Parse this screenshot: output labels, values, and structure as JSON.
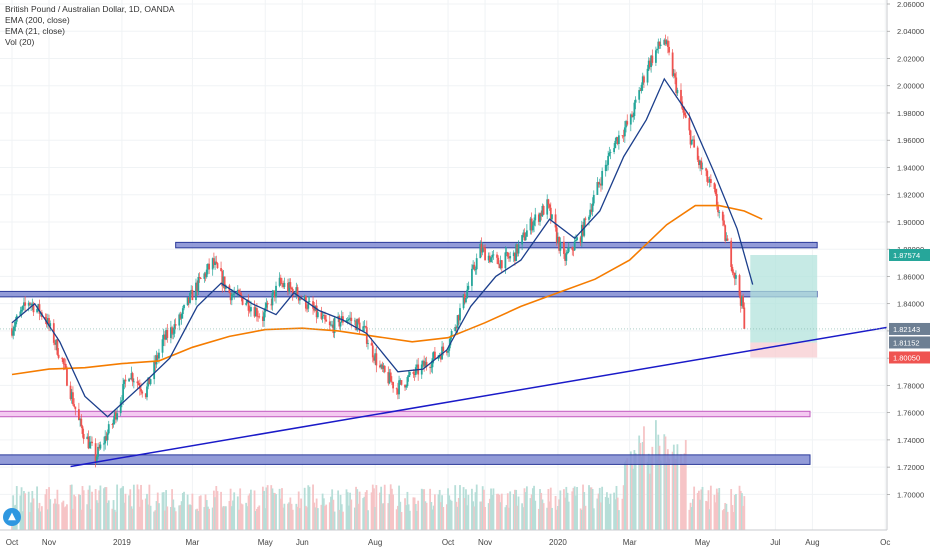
{
  "legend": {
    "title": "British Pound / Australian Dollar, 1D, OANDA",
    "ema200": "EMA (200, close)",
    "ema21": "EMA (21, close)",
    "vol": "Vol (20)"
  },
  "logo_icon": "tradingview-logo-icon",
  "colors": {
    "up": "#26a69a",
    "down": "#ef5350",
    "ema21": "#1c3f8c",
    "ema200": "#f57c00",
    "zone_fill": "#7f8ad1",
    "zone_edge": "#2b3a9a",
    "pink_zone": "#f3c4f0",
    "trendline": "#1a1ac8",
    "target_box": "#b3e3dc",
    "stop_box": "#f8cfd3"
  },
  "chart_data": {
    "type": "candlestick",
    "title": "British Pound / Australian Dollar, 1D, OANDA",
    "y_range": [
      1.69,
      2.06
    ],
    "y_ticks": [
      "2.06000",
      "2.04000",
      "2.02000",
      "2.00000",
      "1.98000",
      "1.96000",
      "1.94000",
      "1.92000",
      "1.90000",
      "1.88000",
      "1.86000",
      "1.84000",
      "1.82000",
      "1.80000",
      "1.78000",
      "1.76000",
      "1.74000",
      "1.72000",
      "1.70000"
    ],
    "x_ticks": [
      "Oct",
      "Nov",
      "2019",
      "Mar",
      "May",
      "Jun",
      "Aug",
      "Oct",
      "Nov",
      "2020",
      "Mar",
      "May",
      "Jul",
      "Aug",
      "Oc"
    ],
    "x_range": [
      "2018-10-01",
      "2020-10-15"
    ],
    "price_labels": [
      {
        "text": "1.87574",
        "value": 1.87574,
        "color": "#26a69a"
      },
      {
        "text": "1.82143",
        "value": 1.82143,
        "color": "#6d7f93"
      },
      {
        "text": "1.81152",
        "value": 1.81152,
        "color": "#6d7f93"
      },
      {
        "text": "1.80050",
        "value": 1.8005,
        "color": "#ef5350"
      }
    ],
    "close_path": [
      [
        "2018-10-01",
        1.822
      ],
      [
        "2018-10-15",
        1.842
      ],
      [
        "2018-10-29",
        1.83
      ],
      [
        "2018-11-12",
        1.798
      ],
      [
        "2018-11-26",
        1.753
      ],
      [
        "2018-12-10",
        1.727
      ],
      [
        "2018-12-24",
        1.752
      ],
      [
        "2019-01-07",
        1.79
      ],
      [
        "2019-01-21",
        1.775
      ],
      [
        "2019-02-04",
        1.812
      ],
      [
        "2019-02-18",
        1.828
      ],
      [
        "2019-03-04",
        1.852
      ],
      [
        "2019-03-18",
        1.87
      ],
      [
        "2019-04-01",
        1.848
      ],
      [
        "2019-04-15",
        1.842
      ],
      [
        "2019-04-29",
        1.83
      ],
      [
        "2019-05-13",
        1.855
      ],
      [
        "2019-05-27",
        1.848
      ],
      [
        "2019-06-10",
        1.835
      ],
      [
        "2019-06-24",
        1.822
      ],
      [
        "2019-07-08",
        1.83
      ],
      [
        "2019-07-22",
        1.822
      ],
      [
        "2019-08-05",
        1.792
      ],
      [
        "2019-08-19",
        1.778
      ],
      [
        "2019-09-02",
        1.788
      ],
      [
        "2019-09-16",
        1.798
      ],
      [
        "2019-09-30",
        1.808
      ],
      [
        "2019-10-14",
        1.842
      ],
      [
        "2019-10-28",
        1.88
      ],
      [
        "2019-11-11",
        1.87
      ],
      [
        "2019-11-25",
        1.875
      ],
      [
        "2019-12-09",
        1.898
      ],
      [
        "2019-12-23",
        1.912
      ],
      [
        "2020-01-06",
        1.872
      ],
      [
        "2020-01-20",
        1.89
      ],
      [
        "2020-02-03",
        1.925
      ],
      [
        "2020-02-17",
        1.958
      ],
      [
        "2020-03-02",
        1.975
      ],
      [
        "2020-03-16",
        2.015
      ],
      [
        "2020-03-30",
        2.035
      ],
      [
        "2020-04-13",
        1.985
      ],
      [
        "2020-04-27",
        1.945
      ],
      [
        "2020-05-11",
        1.92
      ],
      [
        "2020-05-25",
        1.872
      ],
      [
        "2020-06-08",
        1.822
      ]
    ],
    "last_close": 1.82143,
    "series": [
      {
        "name": "EMA (21, close)",
        "points": [
          [
            "2018-10-01",
            1.826
          ],
          [
            "2018-10-20",
            1.84
          ],
          [
            "2018-11-10",
            1.812
          ],
          [
            "2018-12-01",
            1.772
          ],
          [
            "2018-12-20",
            1.757
          ],
          [
            "2019-01-15",
            1.778
          ],
          [
            "2019-02-10",
            1.8
          ],
          [
            "2019-03-05",
            1.838
          ],
          [
            "2019-03-25",
            1.855
          ],
          [
            "2019-04-20",
            1.84
          ],
          [
            "2019-05-10",
            1.832
          ],
          [
            "2019-05-25",
            1.848
          ],
          [
            "2019-06-15",
            1.835
          ],
          [
            "2019-07-05",
            1.828
          ],
          [
            "2019-07-25",
            1.818
          ],
          [
            "2019-08-20",
            1.79
          ],
          [
            "2019-09-10",
            1.792
          ],
          [
            "2019-09-30",
            1.806
          ],
          [
            "2019-10-20",
            1.838
          ],
          [
            "2019-11-10",
            1.86
          ],
          [
            "2019-12-01",
            1.872
          ],
          [
            "2019-12-25",
            1.902
          ],
          [
            "2020-01-15",
            1.888
          ],
          [
            "2020-02-05",
            1.908
          ],
          [
            "2020-02-25",
            1.948
          ],
          [
            "2020-03-15",
            1.975
          ],
          [
            "2020-03-30",
            2.005
          ],
          [
            "2020-04-20",
            1.978
          ],
          [
            "2020-05-10",
            1.938
          ],
          [
            "2020-05-30",
            1.895
          ],
          [
            "2020-06-12",
            1.854
          ]
        ]
      },
      {
        "name": "EMA (200, close)",
        "points": [
          [
            "2018-10-01",
            1.788
          ],
          [
            "2018-11-01",
            1.792
          ],
          [
            "2018-12-01",
            1.793
          ],
          [
            "2019-01-01",
            1.796
          ],
          [
            "2019-02-01",
            1.798
          ],
          [
            "2019-03-01",
            1.808
          ],
          [
            "2019-04-01",
            1.816
          ],
          [
            "2019-05-01",
            1.821
          ],
          [
            "2019-06-01",
            1.822
          ],
          [
            "2019-07-01",
            1.82
          ],
          [
            "2019-08-01",
            1.816
          ],
          [
            "2019-09-01",
            1.812
          ],
          [
            "2019-10-01",
            1.815
          ],
          [
            "2019-11-01",
            1.826
          ],
          [
            "2019-12-01",
            1.838
          ],
          [
            "2020-01-01",
            1.848
          ],
          [
            "2020-02-01",
            1.858
          ],
          [
            "2020-03-01",
            1.872
          ],
          [
            "2020-04-01",
            1.898
          ],
          [
            "2020-04-25",
            1.912
          ],
          [
            "2020-05-15",
            1.912
          ],
          [
            "2020-06-05",
            1.908
          ],
          [
            "2020-06-20",
            1.902
          ]
        ]
      }
    ],
    "zones": [
      {
        "name": "resistance-zone",
        "from": "2019-02-15",
        "to": "2020-08-05",
        "y": [
          1.881,
          1.885
        ]
      },
      {
        "name": "pivot-zone",
        "from": "2018-09-20",
        "to": "2020-08-05",
        "y": [
          1.845,
          1.849
        ]
      },
      {
        "name": "pink-zone",
        "from": "2018-09-20",
        "to": "2020-07-30",
        "y": [
          1.757,
          1.761
        ]
      },
      {
        "name": "support-zone",
        "from": "2018-09-20",
        "to": "2020-07-30",
        "y": [
          1.722,
          1.729
        ]
      }
    ],
    "trendline": {
      "from": [
        "2018-11-19",
        1.7205
      ],
      "to": [
        "2020-10-15",
        1.8245
      ]
    },
    "position": {
      "from": "2020-06-10",
      "to": "2020-08-05",
      "target": 1.87574,
      "entry": 1.81152,
      "stop": 1.8005
    },
    "volume": {
      "scale": "relative"
    }
  }
}
